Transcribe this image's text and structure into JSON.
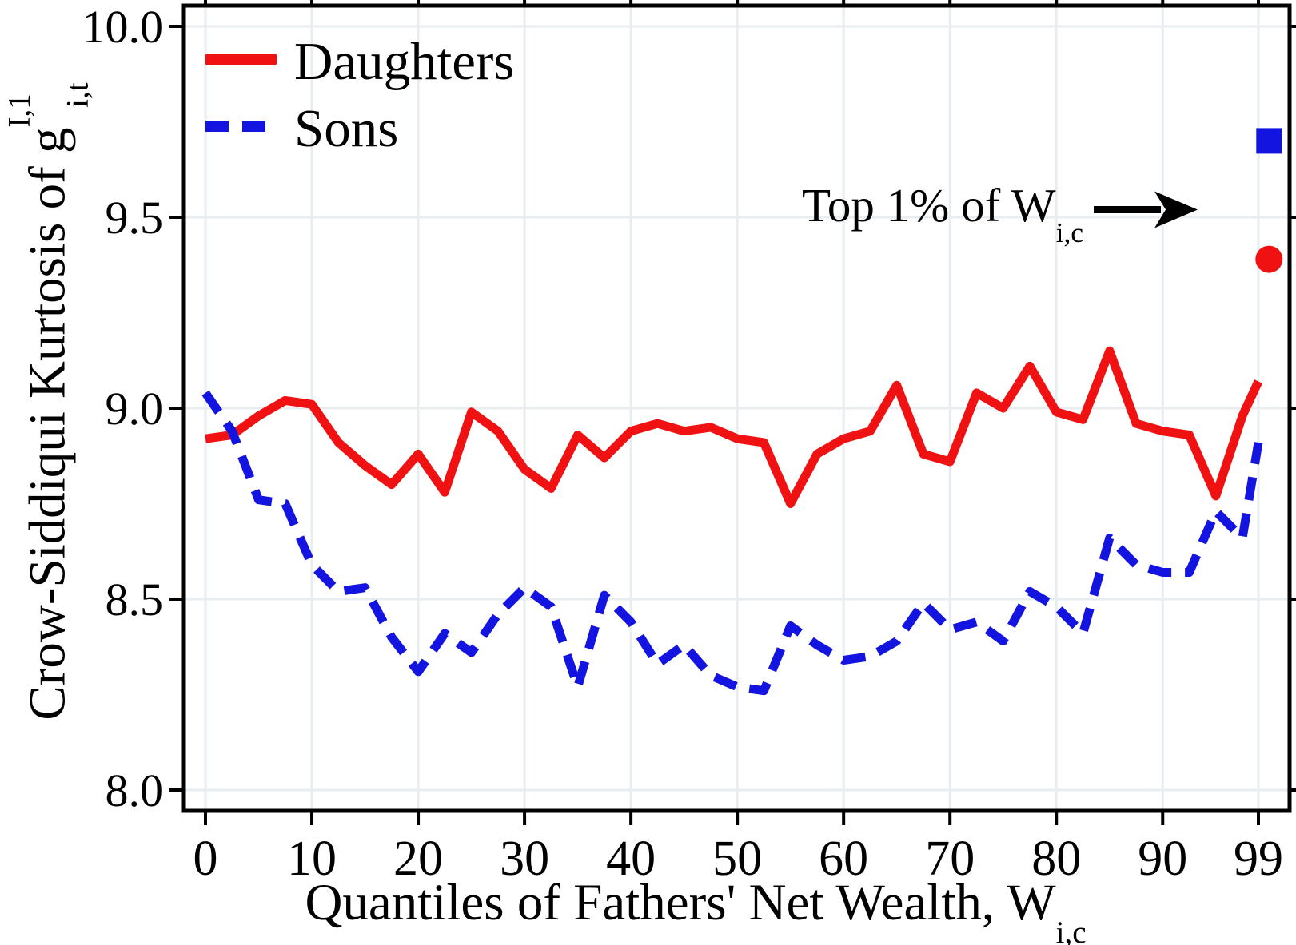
{
  "chart_data": {
    "type": "line",
    "title": "",
    "xlabel": "Quantiles of Fathers' Net Wealth, W_{i,c}",
    "ylabel": "Crow-Siddiqui Kurtosis of g^{I,1}_{i,t}",
    "xlim": [
      0,
      103.5
    ],
    "ylim": [
      7.94,
      10.06
    ],
    "xticks": [
      0,
      10,
      20,
      30,
      40,
      50,
      60,
      70,
      80,
      90,
      99
    ],
    "yticks": [
      8.0,
      8.5,
      9.0,
      9.5,
      10.0
    ],
    "grid": true,
    "legend_position": "top-left",
    "x": [
      0,
      2.5,
      5,
      7.5,
      10,
      12.5,
      15,
      17.5,
      20,
      22.5,
      25,
      27.5,
      30,
      32.5,
      35,
      37.5,
      40,
      42.5,
      45,
      47.5,
      50,
      52.5,
      55,
      57.5,
      60,
      62.5,
      65,
      67.5,
      70,
      72.5,
      75,
      77.5,
      80,
      82.5,
      85,
      87.5,
      90,
      92.5,
      95,
      97.5,
      99
    ],
    "series": [
      {
        "name": "Daughters",
        "color": "#F01212",
        "line_style": "solid",
        "values": [
          8.92,
          8.93,
          8.98,
          9.02,
          9.01,
          8.91,
          8.85,
          8.8,
          8.88,
          8.78,
          8.99,
          8.94,
          8.84,
          8.79,
          8.93,
          8.87,
          8.94,
          8.96,
          8.94,
          8.95,
          8.92,
          8.91,
          8.75,
          8.88,
          8.92,
          8.94,
          9.06,
          8.88,
          8.86,
          9.04,
          9.0,
          9.11,
          8.99,
          8.97,
          9.15,
          8.96,
          8.94,
          8.93,
          8.77,
          8.98,
          9.07
        ]
      },
      {
        "name": "Sons",
        "color": "#1414E0",
        "line_style": "dashed",
        "values": [
          9.04,
          8.94,
          8.76,
          8.75,
          8.59,
          8.52,
          8.53,
          8.4,
          8.31,
          8.41,
          8.36,
          8.46,
          8.53,
          8.48,
          8.27,
          8.51,
          8.44,
          8.33,
          8.38,
          8.3,
          8.27,
          8.26,
          8.43,
          8.38,
          8.34,
          8.35,
          8.39,
          8.49,
          8.42,
          8.44,
          8.39,
          8.52,
          8.48,
          8.41,
          8.66,
          8.59,
          8.57,
          8.57,
          8.73,
          8.66,
          8.91
        ]
      }
    ],
    "outlier_markers": [
      {
        "label": "Top 1% of W_{i,c} - Sons",
        "shape": "square",
        "color": "#1414E0",
        "x": 100,
        "y": 9.7
      },
      {
        "label": "Top 1% of W_{i,c} - Daughters",
        "shape": "circle",
        "color": "#F01212",
        "x": 100,
        "y": 9.39
      }
    ],
    "annotation": {
      "text": "Top 1% of W_{i,c}",
      "arrow_y": 9.52
    }
  },
  "legend": {
    "daughters": "Daughters",
    "sons": "Sons"
  },
  "annotation": {
    "main": "Top 1% of W",
    "sub": "i,c"
  },
  "x_axis": {
    "title_main": "Quantiles of Fathers' Net Wealth, W",
    "title_sub": "i,c"
  },
  "y_axis": {
    "title_main": "Crow-Siddiqui Kurtosis of g",
    "title_sup": "I,1",
    "title_sub": "i,t"
  },
  "colors": {
    "daughters": "#F01212",
    "sons": "#1414E0",
    "grid": "#E7EDF0",
    "axis": "#000000",
    "background": "#FFFFFF"
  }
}
